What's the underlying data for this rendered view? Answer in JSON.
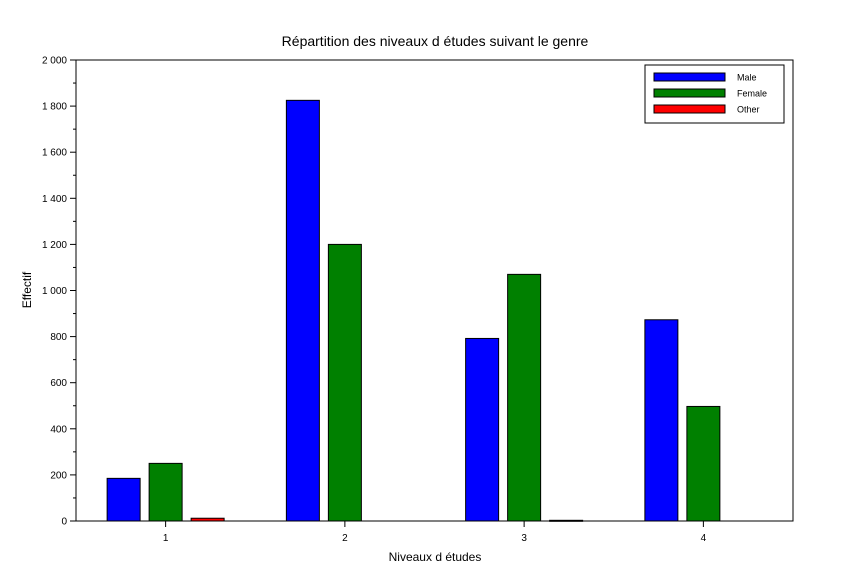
{
  "chart_data": {
    "type": "bar",
    "title": "Répartition des niveaux d études suivant le genre",
    "xlabel": "Niveaux d études",
    "ylabel": "Effectif",
    "categories": [
      "1",
      "2",
      "3",
      "4"
    ],
    "series": [
      {
        "name": "Male",
        "color": "#0000ff",
        "values": [
          185,
          1825,
          792,
          873
        ]
      },
      {
        "name": "Female",
        "color": "#008000",
        "values": [
          250,
          1200,
          1070,
          497
        ]
      },
      {
        "name": "Other",
        "color": "#ff0000",
        "values": [
          12,
          0,
          3,
          0
        ]
      }
    ],
    "ylim": [
      0,
      2000
    ],
    "yticks": [
      {
        "value": 0,
        "label": "0"
      },
      {
        "value": 200,
        "label": "200"
      },
      {
        "value": 400,
        "label": "400"
      },
      {
        "value": 600,
        "label": "600"
      },
      {
        "value": 800,
        "label": "800"
      },
      {
        "value": 1000,
        "label": "1 000"
      },
      {
        "value": 1200,
        "label": "1 200"
      },
      {
        "value": 1400,
        "label": "1 400"
      },
      {
        "value": 1600,
        "label": "1 600"
      },
      {
        "value": 1800,
        "label": "1 800"
      },
      {
        "value": 2000,
        "label": "2 000"
      }
    ],
    "grid": false,
    "legend_position": "top-right"
  }
}
